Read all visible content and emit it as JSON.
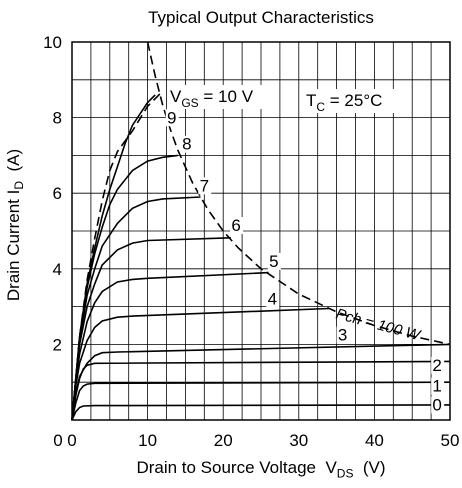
{
  "chart_data": {
    "type": "line",
    "title": "Typical Output Characteristics",
    "xlabel": {
      "text": "Drain to Source Voltage  V",
      "sub": "DS",
      "unit": "  (V)"
    },
    "ylabel": {
      "text": "Drain Current  I",
      "sub": "D",
      "unit": "  (A)"
    },
    "xlim": [
      0,
      50
    ],
    "ylim": [
      0,
      10
    ],
    "x_ticks": [
      0,
      10,
      20,
      30,
      40,
      50
    ],
    "y_ticks": [
      2,
      4,
      6,
      8,
      10
    ],
    "x_tick_labels": [
      "0",
      "10",
      "20",
      "30",
      "40",
      "50"
    ],
    "y_tick_labels": [
      "2",
      "4",
      "6",
      "8",
      "10"
    ],
    "y_zero_label": "0",
    "grid": true,
    "annotations": {
      "vgs": {
        "text": "V",
        "sub": "GS",
        "rest": " = 10 V"
      },
      "tc": {
        "text": "T",
        "sub": "C",
        "rest": " = 25°C"
      },
      "pch": "Pch = 100 W"
    },
    "series": [
      {
        "name": "0",
        "points": [
          [
            0,
            0
          ],
          [
            0.5,
            0.22
          ],
          [
            1,
            0.33
          ],
          [
            1.5,
            0.37
          ],
          [
            3,
            0.38
          ],
          [
            50,
            0.4
          ]
        ]
      },
      {
        "name": "1",
        "points": [
          [
            0,
            0
          ],
          [
            0.5,
            0.45
          ],
          [
            1,
            0.78
          ],
          [
            1.5,
            0.9
          ],
          [
            2,
            0.95
          ],
          [
            3,
            0.97
          ],
          [
            50,
            1.0
          ]
        ]
      },
      {
        "name": "2",
        "points": [
          [
            0,
            0
          ],
          [
            0.5,
            0.65
          ],
          [
            1,
            1.1
          ],
          [
            1.5,
            1.35
          ],
          [
            2,
            1.45
          ],
          [
            3,
            1.5
          ],
          [
            50,
            1.55
          ]
        ]
      },
      {
        "name": "3",
        "points": [
          [
            0,
            0
          ],
          [
            0.5,
            0.7
          ],
          [
            1,
            1.15
          ],
          [
            2,
            1.5
          ],
          [
            3,
            1.7
          ],
          [
            4,
            1.78
          ],
          [
            6,
            1.8
          ],
          [
            50,
            2.0
          ]
        ]
      },
      {
        "name": "4",
        "points": [
          [
            0,
            0
          ],
          [
            0.5,
            0.9
          ],
          [
            1,
            1.5
          ],
          [
            2,
            2.1
          ],
          [
            3,
            2.45
          ],
          [
            4,
            2.62
          ],
          [
            6,
            2.72
          ],
          [
            8,
            2.75
          ],
          [
            34,
            2.95
          ]
        ]
      },
      {
        "name": "5",
        "points": [
          [
            0,
            0
          ],
          [
            0.5,
            1.0
          ],
          [
            1,
            1.75
          ],
          [
            2,
            2.6
          ],
          [
            3,
            3.1
          ],
          [
            4,
            3.4
          ],
          [
            6,
            3.65
          ],
          [
            8,
            3.72
          ],
          [
            10,
            3.75
          ],
          [
            26,
            3.9
          ]
        ]
      },
      {
        "name": "6",
        "points": [
          [
            0,
            0
          ],
          [
            1,
            2.0
          ],
          [
            2,
            3.0
          ],
          [
            3,
            3.6
          ],
          [
            4,
            4.1
          ],
          [
            6,
            4.5
          ],
          [
            8,
            4.68
          ],
          [
            10,
            4.75
          ],
          [
            21,
            4.82
          ]
        ]
      },
      {
        "name": "7",
        "points": [
          [
            0,
            0
          ],
          [
            1,
            2.1
          ],
          [
            2,
            3.3
          ],
          [
            3,
            4.0
          ],
          [
            4,
            4.6
          ],
          [
            6,
            5.2
          ],
          [
            8,
            5.6
          ],
          [
            10,
            5.78
          ],
          [
            12,
            5.85
          ],
          [
            17,
            5.9
          ]
        ]
      },
      {
        "name": "8",
        "points": [
          [
            0,
            0
          ],
          [
            1,
            2.2
          ],
          [
            2,
            3.5
          ],
          [
            3,
            4.4
          ],
          [
            4,
            5.1
          ],
          [
            5,
            5.7
          ],
          [
            6,
            6.1
          ],
          [
            8,
            6.6
          ],
          [
            10,
            6.85
          ],
          [
            12,
            6.95
          ],
          [
            14,
            7.0
          ]
        ]
      },
      {
        "name": "9",
        "points": [
          [
            0,
            0
          ],
          [
            1,
            2.2
          ],
          [
            2,
            3.6
          ],
          [
            3,
            4.55
          ],
          [
            4,
            5.4
          ],
          [
            5,
            6.1
          ],
          [
            6,
            6.7
          ],
          [
            7,
            7.3
          ],
          [
            8,
            7.8
          ],
          [
            10,
            8.4
          ],
          [
            11,
            8.6
          ]
        ]
      }
    ],
    "dashed": [
      {
        "name": "Pch = 100 W",
        "points": [
          [
            10,
            10
          ],
          [
            11,
            9.1
          ],
          [
            12,
            8.33
          ],
          [
            13,
            7.69
          ],
          [
            14,
            7.14
          ],
          [
            16,
            6.25
          ],
          [
            18,
            5.56
          ],
          [
            20,
            5
          ],
          [
            22,
            4.55
          ],
          [
            25,
            4
          ],
          [
            30,
            3.33
          ],
          [
            35,
            2.86
          ],
          [
            40,
            2.5
          ],
          [
            45,
            2.22
          ],
          [
            50,
            2
          ]
        ]
      },
      {
        "name": "VGS = 10 V",
        "points": [
          [
            0,
            0
          ],
          [
            1,
            2.2
          ],
          [
            2,
            3.7
          ],
          [
            3,
            4.8
          ],
          [
            4,
            5.8
          ],
          [
            5,
            6.6
          ],
          [
            6,
            7.1
          ],
          [
            8,
            7.65
          ],
          [
            10,
            8.3
          ],
          [
            12,
            8.7
          ]
        ]
      }
    ],
    "curve_labels": [
      {
        "text": "0",
        "x": 48.3,
        "y": 0.25
      },
      {
        "text": "1",
        "x": 48.3,
        "y": 0.75
      },
      {
        "text": "2",
        "x": 48.3,
        "y": 1.3
      },
      {
        "text": "3",
        "x": 35.8,
        "y": 2.1
      },
      {
        "text": "4",
        "x": 26.5,
        "y": 3.05
      },
      {
        "text": "5",
        "x": 26.7,
        "y": 4.05
      },
      {
        "text": "6",
        "x": 21.7,
        "y": 5.0
      },
      {
        "text": "7",
        "x": 17.5,
        "y": 6.05
      },
      {
        "text": "8",
        "x": 15.2,
        "y": 7.15
      },
      {
        "text": "9",
        "x": 13.2,
        "y": 7.85
      }
    ]
  }
}
